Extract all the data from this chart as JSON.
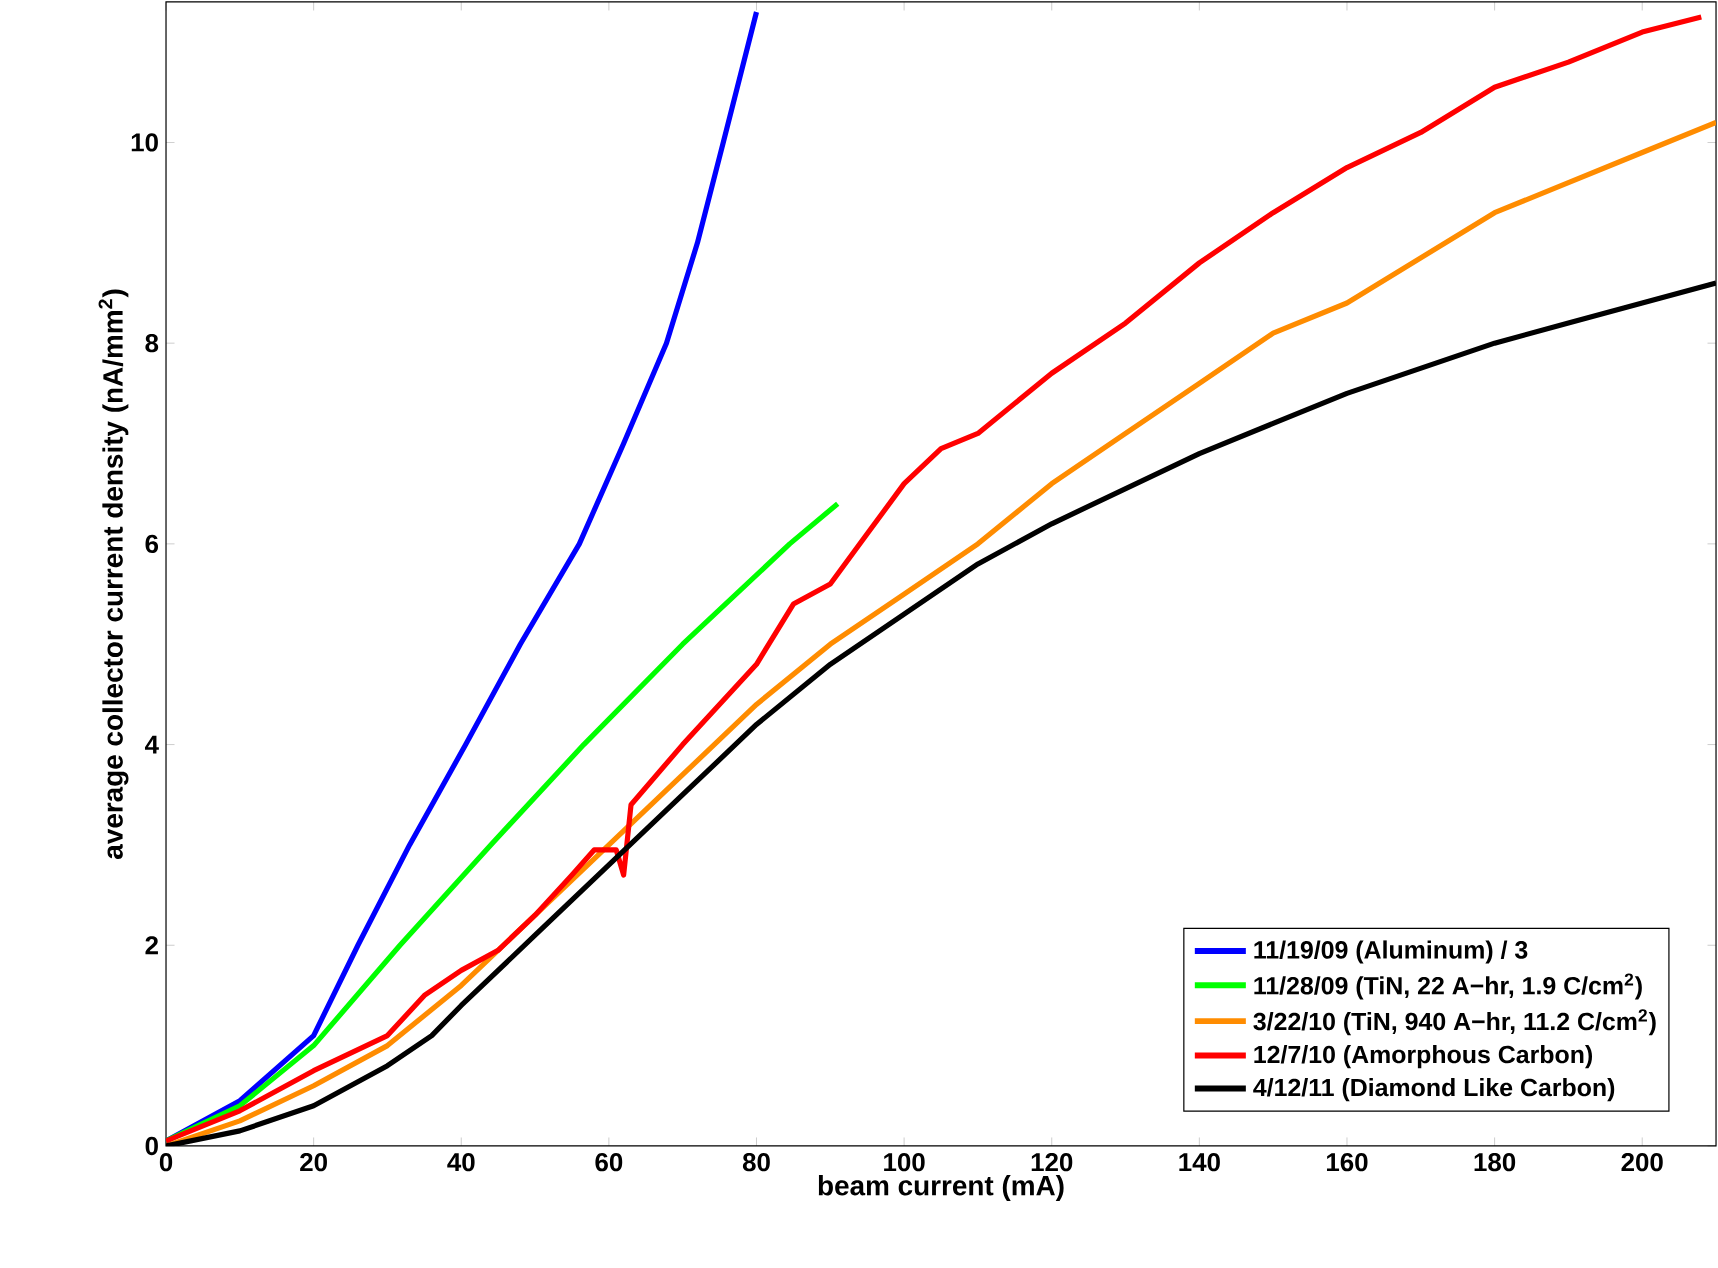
{
  "chart_data": {
    "type": "line",
    "xlabel": "beam current (mA)",
    "ylabel": "average collector current density (nA/mm$^{2}$)",
    "xlim": [
      0,
      210
    ],
    "ylim": [
      0,
      11.4
    ],
    "xticks": [
      0,
      20,
      40,
      60,
      80,
      100,
      120,
      140,
      160,
      180,
      200
    ],
    "yticks": [
      0,
      2,
      4,
      6,
      8,
      10
    ],
    "grid": false,
    "legend": "bottom right",
    "marker": "none",
    "line_style": "solid",
    "series": [
      {
        "name": "11/19/09 (Aluminum) / 3",
        "color": "#0000ff",
        "x": [
          0,
          10,
          20,
          26,
          33,
          40.6,
          48,
          56,
          62,
          67.8,
          72,
          75.5,
          80
        ],
        "values": [
          0.05,
          0.45,
          1.1,
          2,
          3,
          4,
          5,
          6,
          7,
          8,
          9,
          10,
          11.3
        ]
      },
      {
        "name": "11/28/09 (TiN, 22 A−hr, 1.9 C/cm$^{2}$)",
        "color": "#00ff00",
        "x": [
          0,
          10,
          20,
          31.7,
          44,
          56.6,
          70,
          84.5,
          91
        ],
        "values": [
          0.05,
          0.4,
          1.0,
          2,
          3,
          4,
          5,
          6,
          6.4
        ]
      },
      {
        "name": "3/22/10 (TiN, 940 A−hr, 11.2 C/cm$^{2}$)",
        "color": "#ff8c00",
        "x": [
          0,
          10,
          20,
          30,
          40,
          50,
          60,
          70,
          80,
          90,
          100,
          110,
          120,
          130,
          140,
          150,
          160,
          170,
          180,
          190,
          200,
          210
        ],
        "values": [
          0,
          0.25,
          0.6,
          1.0,
          1.6,
          2.3,
          3.0,
          3.7,
          4.4,
          5.0,
          5.5,
          6.0,
          6.6,
          7.1,
          7.6,
          8.1,
          8.4,
          8.85,
          9.3,
          9.6,
          9.9,
          10.2
        ]
      },
      {
        "name": "12/7/10 (Amorphous Carbon)",
        "color": "#ff0000",
        "x": [
          0,
          10,
          20,
          30,
          35,
          40,
          45,
          50,
          55,
          58,
          61,
          62,
          63,
          70,
          80,
          85,
          90,
          95,
          100,
          105,
          110,
          120,
          130,
          140,
          150,
          160,
          170,
          180,
          190,
          200,
          208
        ],
        "values": [
          0.05,
          0.35,
          0.75,
          1.1,
          1.5,
          1.75,
          1.95,
          2.3,
          2.7,
          2.95,
          2.95,
          2.7,
          3.4,
          4.0,
          4.8,
          5.4,
          5.6,
          6.1,
          6.6,
          6.95,
          7.1,
          7.7,
          8.2,
          8.8,
          9.3,
          9.75,
          10.1,
          10.55,
          10.8,
          11.1,
          11.25
        ]
      },
      {
        "name": "4/12/11 (Diamond Like Carbon)",
        "color": "#000000",
        "x": [
          0,
          10,
          20,
          30,
          36,
          40,
          50,
          60,
          70,
          80,
          90,
          100,
          110,
          120,
          130,
          140,
          150,
          160,
          170,
          180,
          190,
          200,
          210
        ],
        "values": [
          0,
          0.15,
          0.4,
          0.8,
          1.1,
          1.4,
          2.1,
          2.8,
          3.5,
          4.2,
          4.8,
          5.3,
          5.8,
          6.2,
          6.55,
          6.9,
          7.2,
          7.5,
          7.75,
          8.0,
          8.2,
          8.4,
          8.6
        ]
      }
    ]
  }
}
